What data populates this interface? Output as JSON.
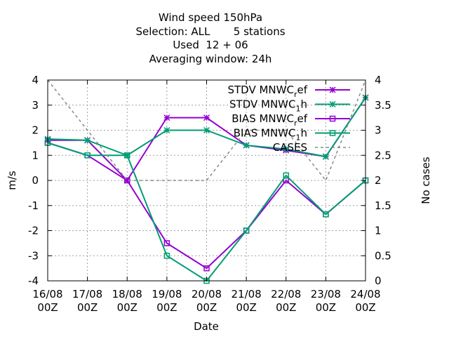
{
  "title_lines": [
    "Wind speed 150hPa",
    "Selection: ALL       5 stations",
    "Used  12 + 06",
    "Averaging window: 24h"
  ],
  "colors": {
    "purple": "#9400d3",
    "green": "#009e73",
    "gray": "#888888",
    "grid": "#a0a0a0"
  },
  "chart_data": {
    "type": "line",
    "categories": [
      "16/08\n00Z",
      "17/08\n00Z",
      "18/08\n00Z",
      "19/08\n00Z",
      "20/08\n00Z",
      "21/08\n00Z",
      "22/08\n00Z",
      "23/08\n00Z",
      "24/08\n00Z"
    ],
    "xlabel": "Date",
    "ylabel": "m/s",
    "y2label": "No cases",
    "ylim": [
      -4,
      4
    ],
    "y2lim": [
      0,
      4
    ],
    "yticks": [
      -4,
      -3,
      -2,
      -1,
      0,
      1,
      2,
      3,
      4
    ],
    "y2ticks": [
      0,
      0.5,
      1,
      1.5,
      2,
      2.5,
      3,
      3.5,
      4
    ],
    "grid": true,
    "legend_position": "top-right",
    "series": [
      {
        "name": "STDV MNWC_ref",
        "legend_main": "STDV MNWC",
        "legend_sub": "r",
        "legend_tail": "ef",
        "color": "purple",
        "marker": "star",
        "dash": false,
        "axis": "y",
        "values": [
          1.6,
          1.6,
          0.0,
          2.5,
          2.5,
          1.4,
          1.2,
          0.95,
          3.3
        ]
      },
      {
        "name": "STDV MNWC_1h",
        "legend_main": "STDV MNWC",
        "legend_sub": "1",
        "legend_tail": "h",
        "color": "green",
        "marker": "star",
        "dash": false,
        "axis": "y",
        "values": [
          1.65,
          1.6,
          1.0,
          2.0,
          2.0,
          1.4,
          1.25,
          0.95,
          3.3
        ]
      },
      {
        "name": "BIAS MNWC_ref",
        "legend_main": "BIAS MNWC",
        "legend_sub": "r",
        "legend_tail": "ef",
        "color": "purple",
        "marker": "square",
        "dash": false,
        "axis": "y",
        "values": [
          1.5,
          1.0,
          0.0,
          -2.5,
          -3.5,
          -2.0,
          0.0,
          -1.35,
          0.0
        ]
      },
      {
        "name": "BIAS MNWC_1h",
        "legend_main": "BIAS MNWC",
        "legend_sub": "1",
        "legend_tail": "h",
        "color": "green",
        "marker": "square",
        "dash": false,
        "axis": "y",
        "values": [
          1.5,
          1.0,
          1.0,
          -3.0,
          -4.0,
          -2.0,
          0.2,
          -1.35,
          0.0
        ]
      },
      {
        "name": "CASES",
        "legend_main": "CASES",
        "legend_sub": "",
        "legend_tail": "",
        "color": "gray",
        "marker": "none",
        "dash": true,
        "axis": "y2",
        "values": [
          4,
          3,
          2,
          2,
          2,
          3,
          3,
          2,
          4
        ]
      }
    ]
  }
}
